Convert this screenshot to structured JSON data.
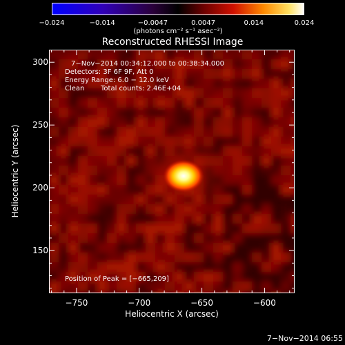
{
  "colorbar": {
    "ticks": [
      "−0.024",
      "−0.014",
      "−0.0047",
      "0.0047",
      "0.014",
      "0.024"
    ],
    "units": "(photons cm⁻² s⁻¹ asec⁻²)",
    "min": -0.024,
    "max": 0.024
  },
  "chart_data": {
    "type": "heatmap",
    "title": "Reconstructed RHESSI Image",
    "xlabel": "Heliocentric X (arcsec)",
    "ylabel": "Heliocentric Y (arcsec)",
    "xlim": [
      -772,
      -576
    ],
    "ylim": [
      116,
      310
    ],
    "xticks": [
      -750,
      -700,
      -650,
      -600
    ],
    "xtick_labels": [
      "−750",
      "−700",
      "−650",
      "−600"
    ],
    "yticks": [
      150,
      200,
      250,
      300
    ],
    "ytick_labels": [
      "150",
      "200",
      "250",
      "300"
    ],
    "peak": {
      "x": -665,
      "y": 209
    },
    "colormap": "hot",
    "annotations": {
      "time": "7−Nov−2014 00:34:12.000 to 00:38:34.000",
      "detectors": "Detectors: 3F 6F 9F, Att 0",
      "energy": "Energy Range: 6.0 − 12.0 keV",
      "clean": "Clean",
      "counts": "Total counts: 2.46E+04",
      "peak_text": "Position of Peak = [−665,209]"
    }
  },
  "footer": {
    "timestamp": "7−Nov−2014 06:55"
  }
}
